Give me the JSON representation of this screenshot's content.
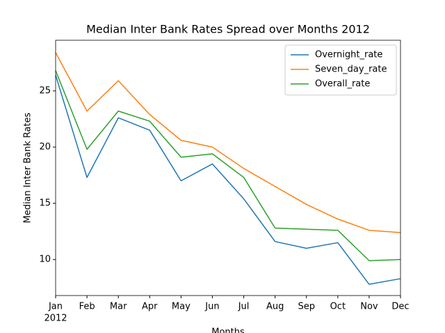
{
  "chart_data": {
    "type": "line",
    "title": "Median Inter Bank Rates Spread over Months 2012",
    "x_label": "Months",
    "y_label": "Median Inter Bank Rates",
    "categories": [
      "Jan",
      "Feb",
      "Mar",
      "Apr",
      "May",
      "Jun",
      "Jul",
      "Aug",
      "Sep",
      "Oct",
      "Nov",
      "Dec"
    ],
    "x_year_label": "2012",
    "series": [
      {
        "name": "Overnight_rate",
        "color": "#1f77b4",
        "values": [
          26.4,
          17.3,
          22.6,
          21.5,
          17.0,
          18.5,
          15.4,
          11.6,
          11.0,
          11.5,
          7.8,
          8.3
        ]
      },
      {
        "name": "Seven_day_rate",
        "color": "#ff7f0e",
        "values": [
          28.4,
          23.2,
          25.9,
          22.9,
          20.6,
          20.0,
          18.1,
          16.5,
          14.9,
          13.6,
          12.6,
          12.4
        ]
      },
      {
        "name": "Overall_rate",
        "color": "#2ca02c",
        "values": [
          26.8,
          19.8,
          23.2,
          22.3,
          19.1,
          19.4,
          17.3,
          12.8,
          12.7,
          12.6,
          9.9,
          10.0
        ]
      }
    ],
    "ylim": [
      6.8,
      29.5
    ],
    "yticks": [
      10,
      15,
      20,
      25
    ],
    "grid": false,
    "legend": "upper right"
  }
}
